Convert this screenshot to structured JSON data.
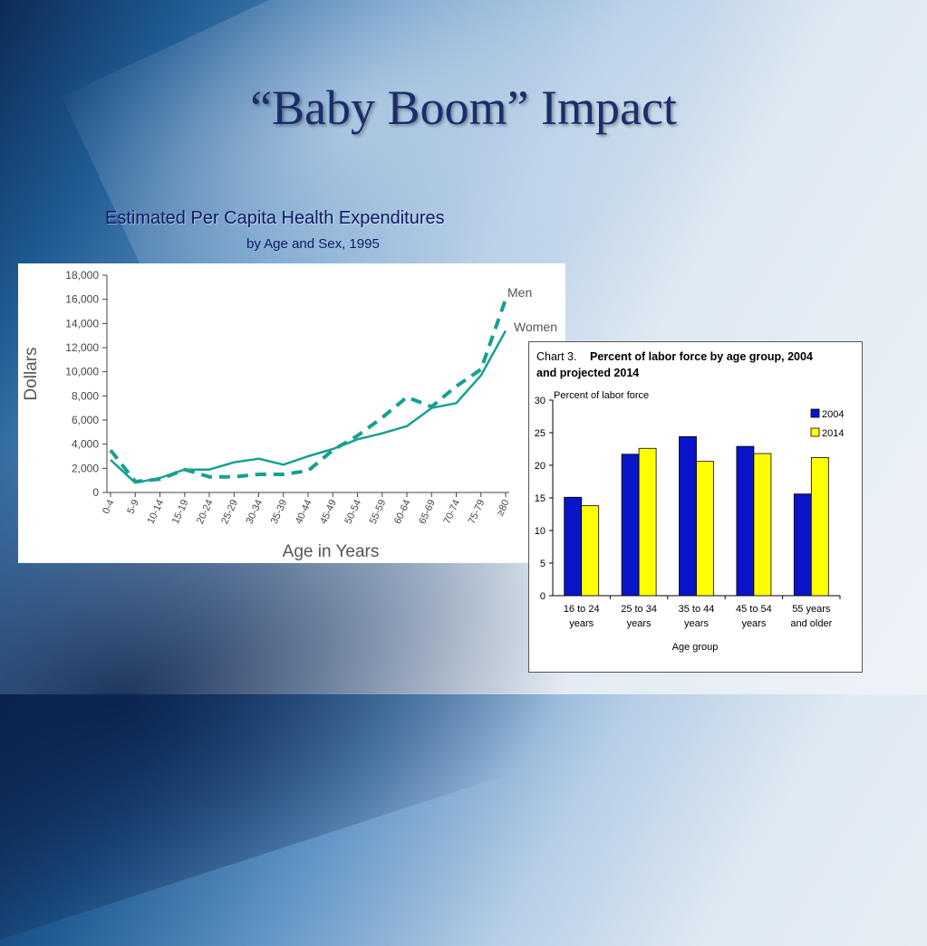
{
  "slide": {
    "title": "“Baby Boom” Impact"
  },
  "chart_data": [
    {
      "type": "line",
      "title": "Estimated  Per Capita Health Expenditures",
      "subtitle": "by Age and Sex, 1995",
      "xlabel": "Age in Years",
      "ylabel": "Dollars",
      "categories": [
        "0-4",
        "5-9",
        "10-14",
        "15-19",
        "20-24",
        "25-29",
        "30-34",
        "35-39",
        "40-44",
        "45-49",
        "50-54",
        "55-59",
        "60-64",
        "65-69",
        "70-74",
        "75-79",
        "≥80"
      ],
      "ylim": [
        0,
        18000
      ],
      "yticks": [
        "0",
        "2,000",
        "4,000",
        "6,000",
        "8,000",
        "10,000",
        "12,000",
        "14,000",
        "16,000",
        "18,000"
      ],
      "series": [
        {
          "name": "Men",
          "style": "dashed",
          "color": "#17a08f",
          "values": [
            3500,
            900,
            1100,
            1900,
            1300,
            1300,
            1500,
            1500,
            1800,
            3500,
            4700,
            6200,
            7900,
            7100,
            8800,
            10200,
            16000
          ]
        },
        {
          "name": "Women",
          "style": "solid",
          "color": "#17a08f",
          "values": [
            2700,
            800,
            1200,
            1900,
            1900,
            2500,
            2800,
            2300,
            3000,
            3600,
            4400,
            4900,
            5500,
            7000,
            7400,
            9700,
            13400
          ]
        }
      ]
    },
    {
      "type": "bar",
      "chart_label": "Chart 3.",
      "title": "Percent of labor force by age group, 2004 and projected 2014",
      "ylabel": "Percent of labor force",
      "xlabel": "Age group",
      "categories": [
        [
          "16 to 24",
          "years"
        ],
        [
          "25 to 34",
          "years"
        ],
        [
          "35 to 44",
          "years"
        ],
        [
          "45 to 54",
          "years"
        ],
        [
          "55 years",
          "and older"
        ]
      ],
      "ylim": [
        0,
        30
      ],
      "yticks": [
        "0",
        "5",
        "10",
        "15",
        "20",
        "25",
        "30"
      ],
      "legend": "top-right",
      "series": [
        {
          "name": "2004",
          "color": "#0a14c8",
          "values": [
            15.1,
            21.7,
            24.4,
            22.9,
            15.6
          ]
        },
        {
          "name": "2014",
          "color": "#ffff00",
          "values": [
            13.8,
            22.6,
            20.6,
            21.8,
            21.2
          ]
        }
      ]
    }
  ]
}
